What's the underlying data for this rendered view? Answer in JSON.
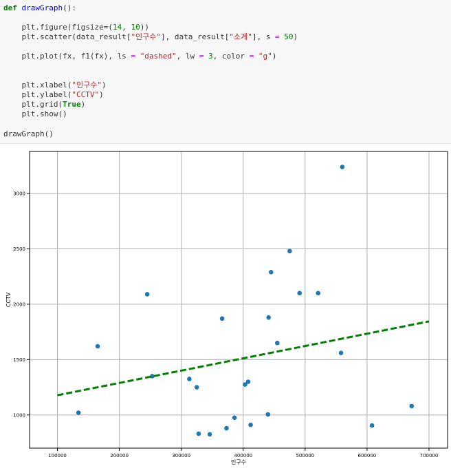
{
  "code": {
    "lines": [
      [
        {
          "t": "def ",
          "c": "kw"
        },
        {
          "t": "drawGraph",
          "c": "fn"
        },
        {
          "t": "():",
          "c": ""
        }
      ],
      [],
      [
        {
          "t": "    plt.figure(figsize=(",
          "c": ""
        },
        {
          "t": "14",
          "c": "num"
        },
        {
          "t": ", ",
          "c": ""
        },
        {
          "t": "10",
          "c": "num"
        },
        {
          "t": "))",
          "c": ""
        }
      ],
      [
        {
          "t": "    plt.scatter(data_result[",
          "c": ""
        },
        {
          "t": "\"인구수\"",
          "c": "str"
        },
        {
          "t": "], data_result[",
          "c": ""
        },
        {
          "t": "\"소계\"",
          "c": "str"
        },
        {
          "t": "], s ",
          "c": ""
        },
        {
          "t": "=",
          "c": "op"
        },
        {
          "t": " ",
          "c": ""
        },
        {
          "t": "50",
          "c": "num"
        },
        {
          "t": ")",
          "c": ""
        }
      ],
      [],
      [
        {
          "t": "    plt.plot(fx, f1(fx), ls ",
          "c": ""
        },
        {
          "t": "=",
          "c": "op"
        },
        {
          "t": " ",
          "c": ""
        },
        {
          "t": "\"dashed\"",
          "c": "str"
        },
        {
          "t": ", lw ",
          "c": ""
        },
        {
          "t": "=",
          "c": "op"
        },
        {
          "t": " ",
          "c": ""
        },
        {
          "t": "3",
          "c": "num"
        },
        {
          "t": ", color ",
          "c": ""
        },
        {
          "t": "=",
          "c": "op"
        },
        {
          "t": " ",
          "c": ""
        },
        {
          "t": "\"g\"",
          "c": "str"
        },
        {
          "t": ")",
          "c": ""
        }
      ],
      [],
      [],
      [
        {
          "t": "    plt.xlabel(",
          "c": ""
        },
        {
          "t": "\"인구수\"",
          "c": "str"
        },
        {
          "t": ")",
          "c": ""
        }
      ],
      [
        {
          "t": "    plt.ylabel(",
          "c": ""
        },
        {
          "t": "\"CCTV\"",
          "c": "str"
        },
        {
          "t": ")",
          "c": ""
        }
      ],
      [
        {
          "t": "    plt.grid(",
          "c": ""
        },
        {
          "t": "True",
          "c": "bool"
        },
        {
          "t": ")",
          "c": ""
        }
      ],
      [
        {
          "t": "    plt.show()",
          "c": ""
        }
      ],
      [],
      [
        {
          "t": "drawGraph()",
          "c": ""
        }
      ]
    ]
  },
  "chart_data": {
    "type": "scatter",
    "xlabel": "인구수",
    "ylabel": "CCTV",
    "xlim": [
      55000,
      730000
    ],
    "ylim": [
      700,
      3380
    ],
    "xticks": [
      100000,
      200000,
      300000,
      400000,
      500000,
      600000,
      700000
    ],
    "yticks": [
      1000,
      1500,
      2000,
      2500,
      3000
    ],
    "grid": true,
    "points": [
      {
        "x": 134000,
        "y": 1020
      },
      {
        "x": 165000,
        "y": 1620
      },
      {
        "x": 245000,
        "y": 2090
      },
      {
        "x": 253000,
        "y": 1350
      },
      {
        "x": 313000,
        "y": 1325
      },
      {
        "x": 325000,
        "y": 1250
      },
      {
        "x": 328000,
        "y": 830
      },
      {
        "x": 346000,
        "y": 825
      },
      {
        "x": 366000,
        "y": 1870
      },
      {
        "x": 373000,
        "y": 880
      },
      {
        "x": 386000,
        "y": 975
      },
      {
        "x": 403000,
        "y": 1275
      },
      {
        "x": 408000,
        "y": 1300
      },
      {
        "x": 412000,
        "y": 910
      },
      {
        "x": 440000,
        "y": 1005
      },
      {
        "x": 441000,
        "y": 1880
      },
      {
        "x": 445000,
        "y": 2290
      },
      {
        "x": 455000,
        "y": 1650
      },
      {
        "x": 475000,
        "y": 2480
      },
      {
        "x": 491000,
        "y": 2100
      },
      {
        "x": 521000,
        "y": 2100
      },
      {
        "x": 558000,
        "y": 1560
      },
      {
        "x": 560000,
        "y": 3240
      },
      {
        "x": 608000,
        "y": 905
      },
      {
        "x": 672000,
        "y": 1080
      }
    ],
    "fit_line": {
      "x": [
        100000,
        700000
      ],
      "y": [
        1178,
        1845
      ],
      "style": "dashed",
      "color": "#008000"
    },
    "point_color": "#1f77b4"
  }
}
